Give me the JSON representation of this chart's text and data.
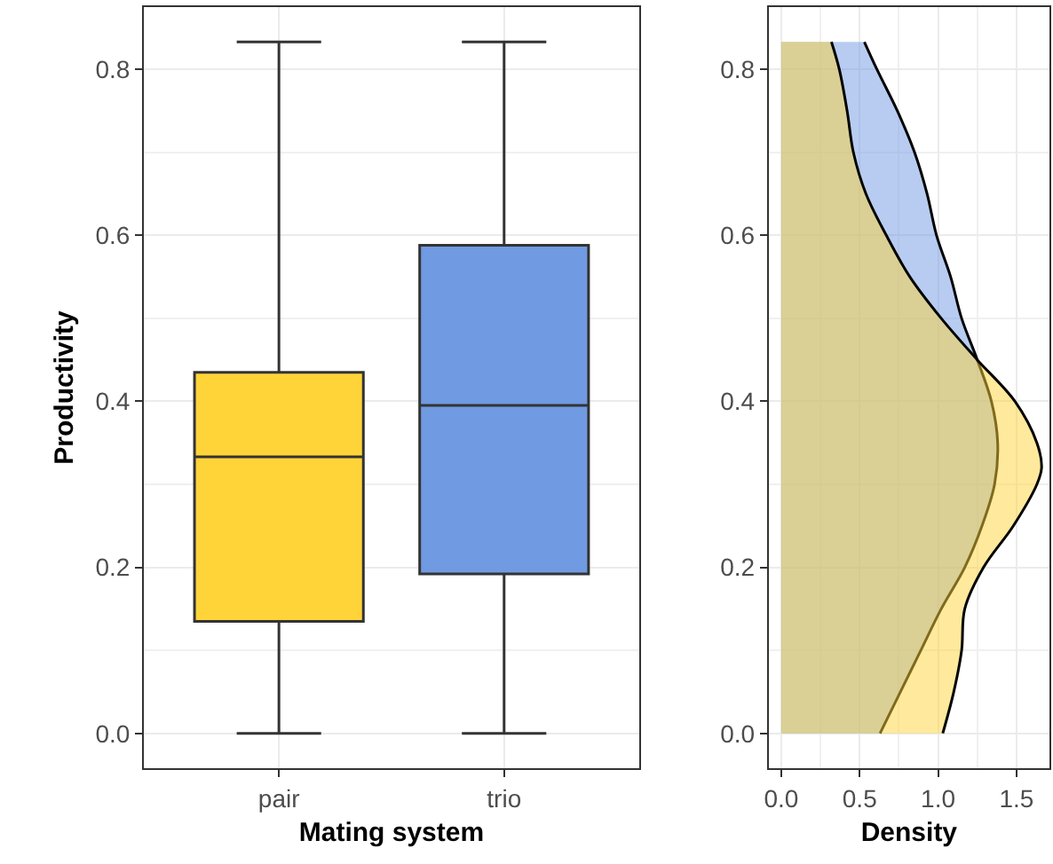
{
  "chart_data": [
    {
      "type": "box",
      "xlabel": "Mating system",
      "ylabel": "Productivity",
      "categories": [
        "pair",
        "trio"
      ],
      "colors": [
        "#fed439",
        "#709ae1"
      ],
      "boxes": [
        {
          "low": 0,
          "q1": 0.135,
          "median": 0.333,
          "q3": 0.435,
          "high": 0.833
        },
        {
          "low": 0,
          "q1": 0.192,
          "median": 0.395,
          "q3": 0.588,
          "high": 0.833
        }
      ],
      "ylim": [
        -0.042,
        0.875
      ],
      "yticks": [
        {
          "value": 0,
          "label": "0.0"
        },
        {
          "value": 0.2,
          "label": "0.2"
        },
        {
          "value": 0.4,
          "label": "0.4"
        },
        {
          "value": 0.6,
          "label": "0.6"
        },
        {
          "value": 0.8,
          "label": "0.8"
        }
      ],
      "grid": true
    },
    {
      "type": "area",
      "orientation": "horizontal",
      "xlabel": "Density",
      "series": [
        {
          "color": "#709ae1",
          "x": [
            0,
            0.05,
            0.1,
            0.15,
            0.2,
            0.25,
            0.3,
            0.35,
            0.4,
            0.45,
            0.5,
            0.55,
            0.6,
            0.65,
            0.7,
            0.75,
            0.8,
            0.833
          ],
          "values": [
            0.63,
            0.76,
            0.89,
            1.02,
            1.17,
            1.28,
            1.36,
            1.38,
            1.34,
            1.25,
            1.15,
            1.08,
            0.99,
            0.93,
            0.85,
            0.74,
            0.61,
            0.53
          ]
        },
        {
          "color": "#fed439",
          "x": [
            0,
            0.05,
            0.1,
            0.15,
            0.2,
            0.25,
            0.3,
            0.32,
            0.35,
            0.4,
            0.45,
            0.5,
            0.55,
            0.6,
            0.65,
            0.7,
            0.75,
            0.8,
            0.833
          ],
          "values": [
            1.03,
            1.1,
            1.15,
            1.17,
            1.29,
            1.48,
            1.63,
            1.66,
            1.63,
            1.49,
            1.25,
            1.02,
            0.82,
            0.67,
            0.54,
            0.46,
            0.42,
            0.37,
            0.32
          ]
        }
      ],
      "ylim": [
        -0.042,
        0.875
      ],
      "yticks": [
        {
          "value": 0,
          "label": "0.0"
        },
        {
          "value": 0.2,
          "label": "0.2"
        },
        {
          "value": 0.4,
          "label": "0.4"
        },
        {
          "value": 0.6,
          "label": "0.6"
        },
        {
          "value": 0.8,
          "label": "0.8"
        }
      ],
      "xlim": [
        -0.08,
        1.71
      ],
      "xticks": [
        {
          "value": 0,
          "label": "0.0"
        },
        {
          "value": 0.5,
          "label": "0.5"
        },
        {
          "value": 1,
          "label": "1.0"
        },
        {
          "value": 1.5,
          "label": "1.5"
        }
      ],
      "grid": true
    }
  ]
}
